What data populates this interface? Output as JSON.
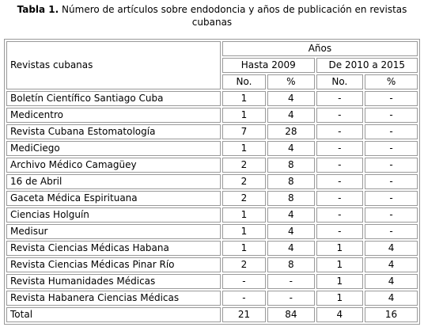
{
  "caption": {
    "label": "Tabla 1.",
    "text": "Número de artículos sobre endodoncia y años de publicación en revistas cubanas"
  },
  "table": {
    "header": {
      "row_label": "Revistas cubanas",
      "group": "Años",
      "periods": [
        "Hasta 2009",
        "De 2010 a 2015"
      ],
      "columns": [
        "No.",
        "%",
        "No.",
        "%"
      ]
    },
    "rows": [
      [
        "Boletín Científico Santiago Cuba",
        1,
        4,
        "-",
        "-"
      ],
      [
        "Medicentro",
        1,
        4,
        "-",
        "-"
      ],
      [
        "Revista Cubana Estomatología",
        7,
        28,
        "-",
        "-"
      ],
      [
        "MediCiego",
        1,
        4,
        "-",
        "-"
      ],
      [
        "Archivo Médico Camagüey",
        2,
        8,
        "-",
        "-"
      ],
      [
        "16 de Abril",
        2,
        8,
        "-",
        "-"
      ],
      [
        "Gaceta Médica Espirituana",
        2,
        8,
        "-",
        "-"
      ],
      [
        "Ciencias Holguín",
        1,
        4,
        "-",
        "-"
      ],
      [
        "Medisur",
        1,
        4,
        "-",
        "-"
      ],
      [
        "Revista Ciencias Médicas Habana",
        1,
        4,
        1,
        4
      ],
      [
        "Revista Ciencias Médicas Pinar Río",
        2,
        8,
        1,
        4
      ],
      [
        "Revista Humanidades Médicas",
        "-",
        "-",
        1,
        4
      ],
      [
        "Revista Habanera Ciencias Médicas",
        "-",
        "-",
        1,
        4
      ],
      [
        "Total",
        21,
        84,
        4,
        16
      ]
    ]
  }
}
